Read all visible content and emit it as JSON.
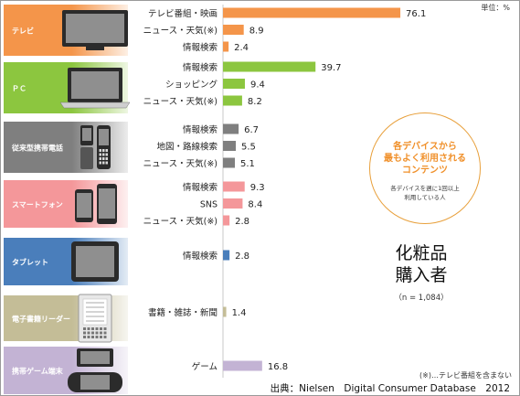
{
  "unit_label": "単位：%",
  "callout": {
    "title": "各デバイスから\n最もよく利用される\nコンテンツ",
    "subtitle": "各デバイスを週に1回以上\n利用している人"
  },
  "panel": {
    "title": "化粧品\n購入者",
    "sample": "（n = 1,084）"
  },
  "footnote": "(※)…テレビ番組を含まない",
  "source": "出典：Nielsen　Digital Consumer Database　2012",
  "chart_data": {
    "type": "bar",
    "orientation": "horizontal",
    "groups": [
      {
        "device": "テレビ",
        "color": "#f4954a",
        "icon": "tv-icon",
        "items": [
          {
            "label": "テレビ番組・映画",
            "value": 76.1
          },
          {
            "label": "ニュース・天気(※)",
            "value": 8.9
          },
          {
            "label": "情報検索",
            "value": 2.4
          }
        ]
      },
      {
        "device": "ＰＣ",
        "color": "#8cc63f",
        "icon": "laptop-icon",
        "items": [
          {
            "label": "情報検索",
            "value": 39.7
          },
          {
            "label": "ショッピング",
            "value": 9.4
          },
          {
            "label": "ニュース・天気(※)",
            "value": 8.2
          }
        ]
      },
      {
        "device": "従来型携帯電話",
        "color": "#7f7f7f",
        "icon": "feature-phone-icon",
        "items": [
          {
            "label": "情報検索",
            "value": 6.7
          },
          {
            "label": "地図・路線検索",
            "value": 5.5
          },
          {
            "label": "ニュース・天気(※)",
            "value": 5.1
          }
        ]
      },
      {
        "device": "スマートフォン",
        "color": "#f4979a",
        "icon": "smartphone-icon",
        "items": [
          {
            "label": "情報検索",
            "value": 9.3
          },
          {
            "label": "SNS",
            "value": 8.4
          },
          {
            "label": "ニュース・天気(※)",
            "value": 2.8
          }
        ]
      },
      {
        "device": "タブレット",
        "color": "#4a7ebb",
        "icon": "tablet-icon",
        "items": [
          {
            "label": "情報検索",
            "value": 2.8
          }
        ]
      },
      {
        "device": "電子書籍リーダー",
        "color": "#c4bd97",
        "icon": "ereader-icon",
        "items": [
          {
            "label": "書籍・雑誌・新聞",
            "value": 1.4
          }
        ]
      },
      {
        "device": "携帯ゲーム端末",
        "color": "#c3b3d4",
        "icon": "handheld-game-icon",
        "items": [
          {
            "label": "ゲーム",
            "value": 16.8
          }
        ]
      }
    ]
  }
}
